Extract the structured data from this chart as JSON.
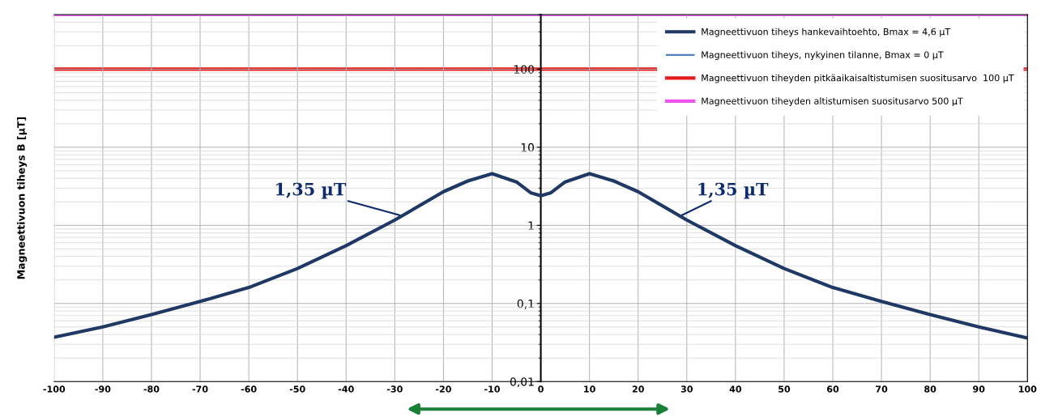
{
  "chart_data": {
    "type": "line",
    "ylabel": "Magneettivuon tiheys B [µT]",
    "x": [
      -100,
      -90,
      -80,
      -70,
      -60,
      -50,
      -40,
      -30,
      -20,
      -15,
      -10,
      -5,
      -2,
      0,
      2,
      5,
      10,
      15,
      20,
      30,
      40,
      50,
      60,
      70,
      80,
      90,
      100
    ],
    "series": [
      {
        "name": "Magneettivuon tiheys hankevaihtoehto, Bmax = 4,6 µT",
        "color": "#1f3864",
        "values": [
          0.037,
          0.05,
          0.072,
          0.106,
          0.16,
          0.28,
          0.55,
          1.17,
          2.7,
          3.7,
          4.6,
          3.6,
          2.6,
          2.4,
          2.6,
          3.6,
          4.6,
          3.7,
          2.7,
          1.17,
          0.55,
          0.28,
          0.16,
          0.106,
          0.072,
          0.05,
          0.036
        ]
      },
      {
        "name": "Magneettivuon tiheys, nykyinen tilanne, Bmax = 0 µT",
        "color": "#4f81bd",
        "values": [
          null,
          null,
          null,
          null,
          null,
          null,
          null,
          null,
          null,
          null,
          null,
          null,
          null,
          null,
          null,
          null,
          null,
          null,
          null,
          null,
          null,
          null,
          null,
          null,
          null,
          null,
          null
        ]
      }
    ],
    "ref_lines": [
      {
        "axis": "y",
        "value": 100,
        "label": "Magneettivuon tiheyden pitkäaikaisaltistumisen suositusarvo  100 µT",
        "color": "#e41a1c"
      },
      {
        "axis": "y",
        "value": 500,
        "label": "Magneettivuon tiheyden altistumisen suositusarvo 500 µT",
        "color": "#ee55ee"
      }
    ],
    "annotations": [
      {
        "text": "1,35 µT",
        "x": -29,
        "y": 1.35
      },
      {
        "text": "1,35 µT",
        "x": 29,
        "y": 1.35
      }
    ],
    "log": "y",
    "xlim": [
      -100,
      100
    ],
    "ylim": [
      0.01,
      500
    ],
    "xticks": [
      -100,
      -90,
      -80,
      -70,
      -60,
      -50,
      -40,
      -30,
      -20,
      -10,
      0,
      10,
      20,
      30,
      40,
      50,
      60,
      70,
      80,
      90,
      100
    ],
    "yticks": [
      {
        "value": 0.01,
        "label": "0,01"
      },
      {
        "value": 0.1,
        "label": "0,1"
      },
      1,
      10,
      100
    ],
    "grid": true,
    "legend": "top right",
    "marker": "none",
    "line_style": "solid"
  }
}
